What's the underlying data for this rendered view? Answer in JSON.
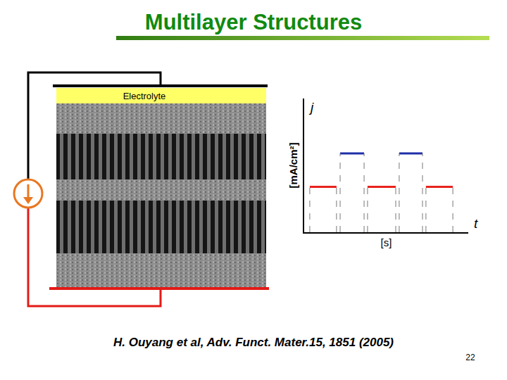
{
  "slide": {
    "title": "Multilayer Structures",
    "electrolyte_label": "Electrolyte",
    "citation": "H. Ouyang et al, Adv. Funct. Mater.15, 1851 (2005)",
    "page": "22"
  },
  "chart_data": {
    "type": "line",
    "y_symbol": "j",
    "y_label": "[mA/cm²]",
    "x_symbol": "t",
    "x_label": "[s]",
    "xlim": [
      0,
      10
    ],
    "ylim": [
      0,
      10
    ],
    "tick_labels": false,
    "grid": false,
    "series": [
      {
        "color": "#e8231d",
        "x": [
          0.34,
          1.97,
          null,
          3.86,
          5.58,
          null,
          7.42,
          9.06
        ],
        "values": [
          3.4,
          3.4,
          null,
          3.4,
          3.4,
          null,
          3.4,
          3.4
        ]
      },
      {
        "color": "#1f2fa8",
        "x": [
          2.19,
          3.65,
          null,
          5.79,
          7.21
        ],
        "values": [
          5.9,
          5.9,
          null,
          5.9,
          5.9
        ]
      }
    ]
  }
}
